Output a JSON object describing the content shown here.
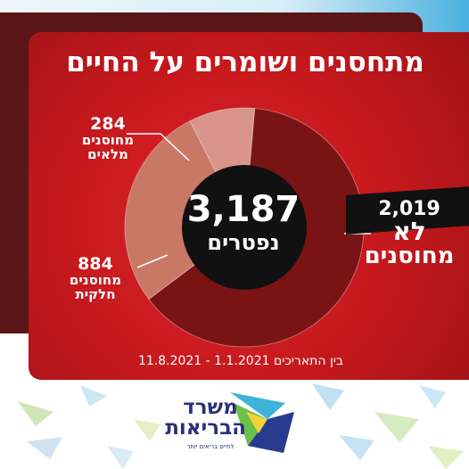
{
  "title": "מתחסנים ושומרים על החיים",
  "center": {
    "value": "3,187",
    "label": "נפטרים"
  },
  "dates": "בין התאריכים 1.1.2021 - 11.8.2021",
  "logo": {
    "line1": "משרד",
    "line2": "הבריאות",
    "tagline": "לחיים בריאים יותר"
  },
  "colors": {
    "card": "#c4181d",
    "not_vaccinated": "#7a1414",
    "partial": "#c97866",
    "full": "#d9958a",
    "center": "#111111",
    "logo": "#2a2f7a"
  },
  "chart_data": {
    "type": "pie",
    "title": "מתחסנים ושומרים על החיים",
    "total": 3187,
    "total_label": "נפטרים",
    "slices": [
      {
        "value": 2019,
        "display": "2,019",
        "label_line1": "לא",
        "label_line2": "מחוסנים",
        "color": "#7a1414"
      },
      {
        "value": 884,
        "display": "884",
        "label_line1": "מחוסנים",
        "label_line2": "חלקית",
        "color": "#c97866"
      },
      {
        "value": 284,
        "display": "284",
        "label_line1": "מחוסנים",
        "label_line2": "מלאים",
        "color": "#d9958a"
      }
    ]
  }
}
